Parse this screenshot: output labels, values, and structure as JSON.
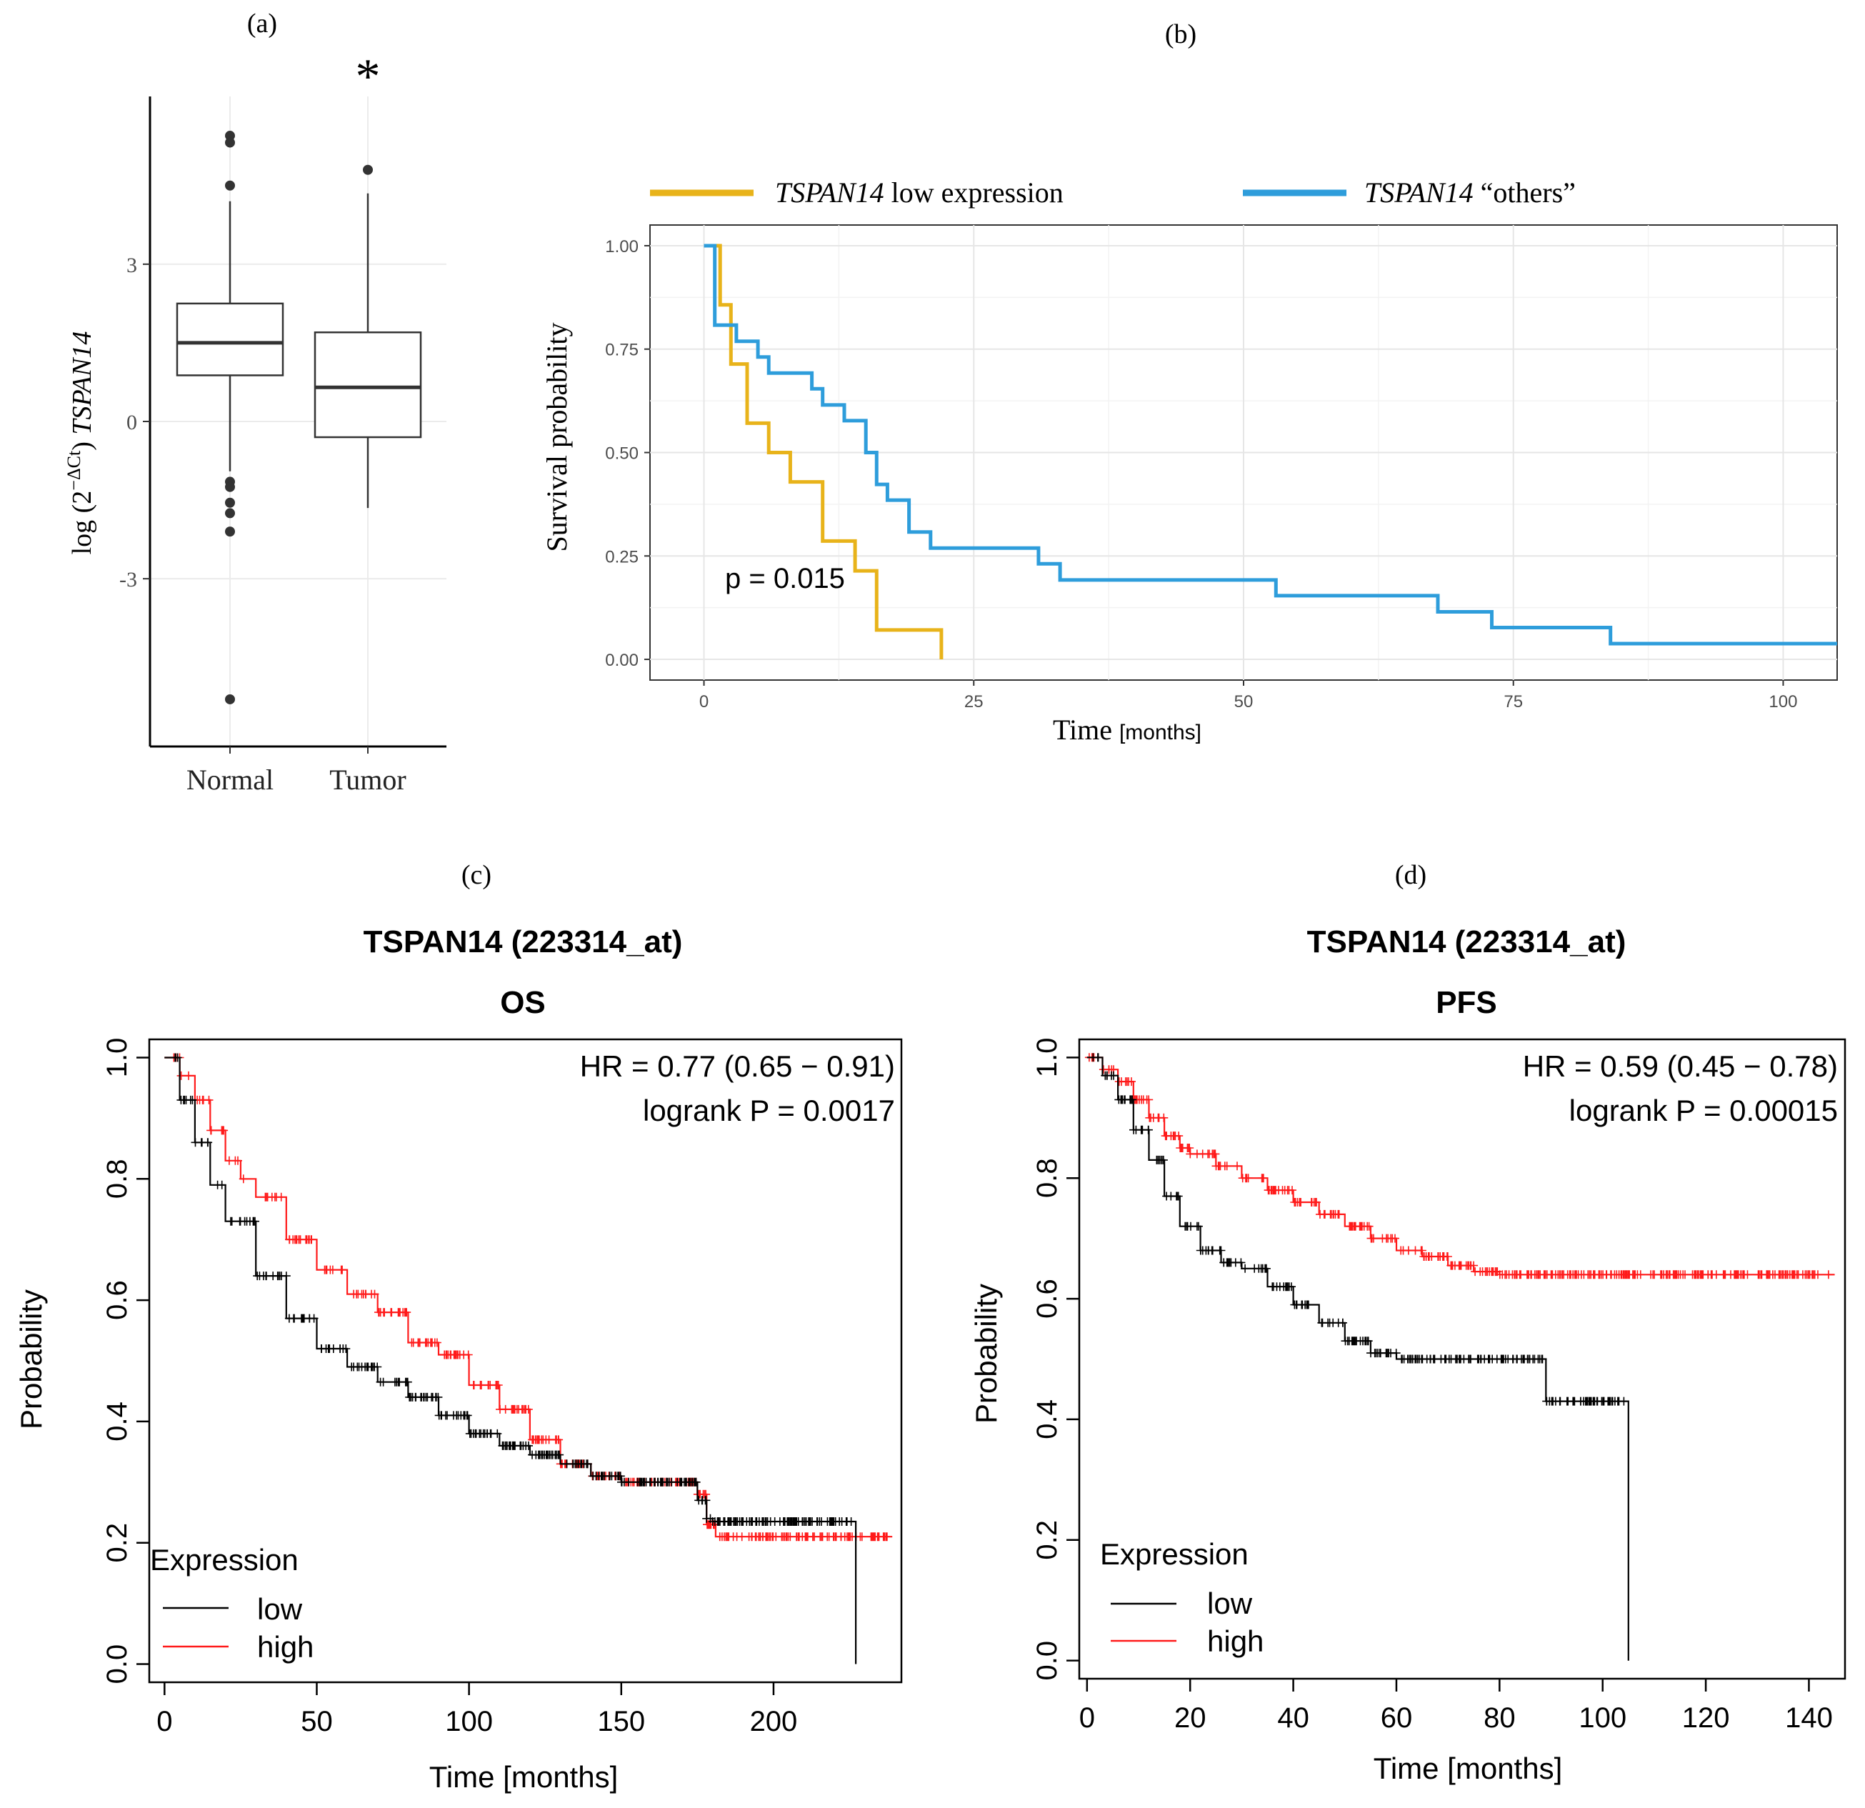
{
  "chart_data": [
    {
      "id": "a",
      "type": "box",
      "panel_label": "(a)",
      "significance_marker": "*",
      "ylabel_prefix": "log (2",
      "ylabel_sup": "−ΔCt",
      "ylabel_suffix": ") ",
      "ylabel_gene": "TSPAN14",
      "ylim": [
        -6.2,
        6.2
      ],
      "yticks": [
        -3,
        0,
        3
      ],
      "ytick_labels": [
        "-3",
        "0",
        "3"
      ],
      "grid": true,
      "categories": [
        "Normal",
        "Tumor"
      ],
      "boxes": [
        {
          "name": "Normal",
          "q1": 0.88,
          "median": 1.5,
          "q3": 2.25,
          "whisker_low": -0.95,
          "whisker_high": 4.2,
          "outliers": [
            5.45,
            5.32,
            4.5,
            -1.15,
            -1.25,
            -1.55,
            -1.75,
            -2.1,
            -5.3
          ]
        },
        {
          "name": "Tumor",
          "q1": -0.3,
          "median": 0.65,
          "q3": 1.7,
          "whisker_low": -1.65,
          "whisker_high": 4.35,
          "outliers": [
            4.8
          ]
        }
      ]
    },
    {
      "id": "b",
      "type": "line",
      "step": true,
      "panel_label": "(b)",
      "xlabel": "Time",
      "xlabel_unit": "[months]",
      "ylabel": "Survival probability",
      "xlim": [
        -5,
        105
      ],
      "ylim": [
        -0.05,
        1.05
      ],
      "xticks": [
        0,
        25,
        50,
        75,
        100
      ],
      "yticks": [
        0,
        0.25,
        0.5,
        0.75,
        1.0
      ],
      "ytick_labels": [
        "0.00",
        "0.25",
        "0.50",
        "0.75",
        "1.00"
      ],
      "annotation": "p = 0.015",
      "legend": {
        "position": "top"
      },
      "series": [
        {
          "name_italic": "TSPAN14",
          "name_rest": " low expression",
          "color": "#E8B31A",
          "x": [
            0,
            1,
            1.5,
            2.5,
            4,
            6,
            8,
            11,
            14,
            16,
            22
          ],
          "y": [
            1.0,
            1.0,
            0.857,
            0.714,
            0.571,
            0.5,
            0.429,
            0.286,
            0.214,
            0.071,
            0.0
          ]
        },
        {
          "name_italic": "TSPAN14",
          "name_rest": " “others”",
          "color": "#2E9DDB",
          "x": [
            0,
            1,
            2,
            3,
            5,
            6,
            10,
            11,
            13,
            15,
            16,
            17,
            19,
            21,
            31,
            33,
            53,
            68,
            73,
            84,
            105
          ],
          "y": [
            1.0,
            0.808,
            0.808,
            0.769,
            0.731,
            0.692,
            0.654,
            0.615,
            0.577,
            0.5,
            0.423,
            0.385,
            0.308,
            0.269,
            0.231,
            0.192,
            0.154,
            0.115,
            0.077,
            0.038,
            0.038
          ]
        }
      ]
    },
    {
      "id": "c",
      "type": "line",
      "step": true,
      "panel_label": "(c)",
      "title": "TSPAN14 (223314_at)",
      "subtitle": "OS",
      "hr_text": "HR = 0.77 (0.65 − 0.91)",
      "logrank_text": "logrank P = 0.0017",
      "xlabel": "Time [months]",
      "ylabel": "Probability",
      "xlim": [
        -5,
        242
      ],
      "ylim": [
        -0.03,
        1.03
      ],
      "xticks": [
        0,
        50,
        100,
        150,
        200
      ],
      "yticks": [
        0.0,
        0.2,
        0.4,
        0.6,
        0.8,
        1.0
      ],
      "ytick_labels": [
        "0.0",
        "0.2",
        "0.4",
        "0.6",
        "0.8",
        "1.0"
      ],
      "legend": {
        "title": "Expression",
        "position": "bottom-left"
      },
      "series": [
        {
          "name": "low",
          "color": "#000000",
          "x": [
            0,
            5,
            10,
            15,
            20,
            30,
            40,
            50,
            60,
            70,
            80,
            90,
            100,
            110,
            120,
            130,
            140,
            150,
            160,
            170,
            175,
            178,
            180,
            200,
            227,
            227
          ],
          "y": [
            1.0,
            0.93,
            0.86,
            0.79,
            0.73,
            0.64,
            0.57,
            0.52,
            0.49,
            0.465,
            0.44,
            0.41,
            0.38,
            0.36,
            0.345,
            0.33,
            0.31,
            0.3,
            0.3,
            0.3,
            0.27,
            0.24,
            0.235,
            0.235,
            0.235,
            0.0
          ]
        },
        {
          "name": "high",
          "color": "#FF1A1A",
          "x": [
            0,
            5,
            10,
            15,
            20,
            25,
            30,
            40,
            50,
            60,
            70,
            80,
            90,
            100,
            110,
            120,
            130,
            140,
            150,
            160,
            170,
            175,
            178,
            181,
            200,
            239
          ],
          "y": [
            1.0,
            0.97,
            0.93,
            0.88,
            0.83,
            0.8,
            0.77,
            0.7,
            0.65,
            0.61,
            0.58,
            0.53,
            0.51,
            0.46,
            0.42,
            0.37,
            0.33,
            0.31,
            0.3,
            0.3,
            0.3,
            0.28,
            0.23,
            0.21,
            0.21,
            0.21
          ]
        }
      ]
    },
    {
      "id": "d",
      "type": "line",
      "step": true,
      "panel_label": "(d)",
      "title": "TSPAN14 (223314_at)",
      "subtitle": "PFS",
      "hr_text": "HR = 0.59 (0.45 − 0.78)",
      "logrank_text": "logrank P = 0.00015",
      "xlabel": "Time [months]",
      "ylabel": "Probability",
      "xlim": [
        -1.5,
        147
      ],
      "ylim": [
        -0.03,
        1.03
      ],
      "xticks": [
        0,
        20,
        40,
        60,
        80,
        100,
        120,
        140
      ],
      "yticks": [
        0.0,
        0.2,
        0.4,
        0.6,
        0.8,
        1.0
      ],
      "ytick_labels": [
        "0.0",
        "0.2",
        "0.4",
        "0.6",
        "0.8",
        "1.0"
      ],
      "legend": {
        "title": "Expression",
        "position": "bottom-left"
      },
      "series": [
        {
          "name": "low",
          "color": "#000000",
          "x": [
            0,
            3,
            6,
            9,
            12,
            15,
            18,
            22,
            26,
            30,
            35,
            40,
            45,
            50,
            55,
            60,
            70,
            80,
            89,
            100,
            105,
            105
          ],
          "y": [
            1.0,
            0.97,
            0.93,
            0.88,
            0.83,
            0.77,
            0.72,
            0.68,
            0.66,
            0.65,
            0.62,
            0.59,
            0.56,
            0.53,
            0.51,
            0.5,
            0.5,
            0.5,
            0.43,
            0.43,
            0.43,
            0.0
          ]
        },
        {
          "name": "high",
          "color": "#FF1A1A",
          "x": [
            0,
            3,
            6,
            9,
            12,
            15,
            18,
            20,
            25,
            30,
            35,
            40,
            45,
            50,
            55,
            60,
            65,
            70,
            75,
            80,
            145
          ],
          "y": [
            1.0,
            0.98,
            0.96,
            0.93,
            0.9,
            0.87,
            0.85,
            0.84,
            0.82,
            0.8,
            0.78,
            0.76,
            0.74,
            0.72,
            0.7,
            0.68,
            0.67,
            0.655,
            0.645,
            0.64,
            0.64
          ]
        }
      ]
    }
  ]
}
